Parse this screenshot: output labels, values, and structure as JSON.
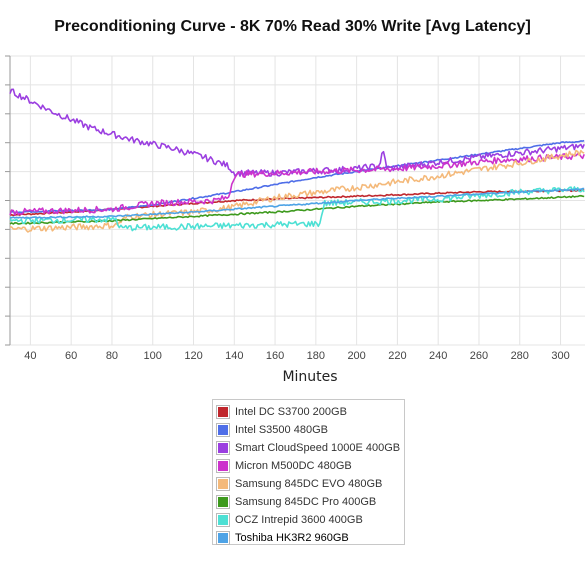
{
  "chart_data": {
    "type": "line",
    "title": "Preconditioning Curve - 8K 70% Read 30% Write [Avg Latency]",
    "xlabel": "Minutes",
    "ylabel": "",
    "xlim": [
      30,
      312
    ],
    "ylim": [
      0,
      10
    ],
    "x_ticks": [
      40,
      60,
      80,
      100,
      120,
      140,
      160,
      180,
      200,
      220,
      240,
      260,
      280,
      300
    ],
    "grid": true,
    "legend_position": "bottom-center",
    "series": [
      {
        "name": "Intel DC S3700 200GB",
        "color": "#c0272d",
        "style": "smooth",
        "points": [
          [
            30,
            4.5
          ],
          [
            60,
            4.6
          ],
          [
            100,
            4.8
          ],
          [
            140,
            5.0
          ],
          [
            180,
            5.1
          ],
          [
            220,
            5.2
          ],
          [
            260,
            5.3
          ],
          [
            312,
            5.35
          ]
        ]
      },
      {
        "name": "Intel S3500 480GB",
        "color": "#4f6ee8",
        "style": "smooth",
        "points": [
          [
            30,
            4.6
          ],
          [
            60,
            4.65
          ],
          [
            82,
            4.7
          ],
          [
            100,
            4.85
          ],
          [
            140,
            5.3
          ],
          [
            180,
            5.8
          ],
          [
            220,
            6.2
          ],
          [
            260,
            6.6
          ],
          [
            300,
            7.0
          ],
          [
            312,
            7.05
          ]
        ]
      },
      {
        "name": "Smart CloudSpeed 1000E 400GB",
        "color": "#9b3fe0",
        "style": "jagged",
        "points": [
          [
            30,
            8.8
          ],
          [
            50,
            8.1
          ],
          [
            70,
            7.5
          ],
          [
            90,
            7.1
          ],
          [
            110,
            6.8
          ],
          [
            125,
            6.5
          ],
          [
            137,
            6.2
          ],
          [
            140,
            5.95
          ],
          [
            160,
            5.95
          ],
          [
            200,
            6.1
          ],
          [
            211,
            6.2
          ],
          [
            213,
            6.7
          ],
          [
            215,
            6.1
          ],
          [
            260,
            6.5
          ],
          [
            300,
            6.8
          ],
          [
            312,
            6.9
          ]
        ]
      },
      {
        "name": "Micron M500DC 480GB",
        "color": "#cc33cc",
        "style": "jagged",
        "points": [
          [
            30,
            4.6
          ],
          [
            80,
            4.7
          ],
          [
            100,
            4.9
          ],
          [
            130,
            5.0
          ],
          [
            137,
            5.1
          ],
          [
            140,
            5.9
          ],
          [
            180,
            6.0
          ],
          [
            220,
            6.1
          ],
          [
            240,
            6.2
          ],
          [
            270,
            6.4
          ],
          [
            300,
            6.5
          ],
          [
            312,
            6.55
          ]
        ]
      },
      {
        "name": "Samsung 845DC EVO 480GB",
        "color": "#f4b97a",
        "style": "jagged",
        "points": [
          [
            30,
            4.0
          ],
          [
            70,
            4.1
          ],
          [
            82,
            4.15
          ],
          [
            88,
            4.45
          ],
          [
            120,
            4.6
          ],
          [
            138,
            4.75
          ],
          [
            160,
            5.1
          ],
          [
            200,
            5.45
          ],
          [
            240,
            5.85
          ],
          [
            280,
            6.3
          ],
          [
            312,
            6.7
          ]
        ]
      },
      {
        "name": "Samsung 845DC Pro 400GB",
        "color": "#3e9a1e",
        "style": "smooth",
        "points": [
          [
            30,
            4.2
          ],
          [
            80,
            4.3
          ],
          [
            120,
            4.45
          ],
          [
            160,
            4.6
          ],
          [
            200,
            4.8
          ],
          [
            240,
            4.95
          ],
          [
            280,
            5.05
          ],
          [
            312,
            5.15
          ]
        ]
      },
      {
        "name": "OCZ Intrepid 3600 400GB",
        "color": "#4de0d4",
        "style": "jagged",
        "points": [
          [
            30,
            4.3
          ],
          [
            82,
            4.35
          ],
          [
            84,
            4.05
          ],
          [
            120,
            4.1
          ],
          [
            182,
            4.2
          ],
          [
            184,
            4.9
          ],
          [
            240,
            5.05
          ],
          [
            280,
            5.3
          ],
          [
            312,
            5.4
          ]
        ]
      },
      {
        "name": "Toshiba HK3R2 960GB",
        "color": "#4ea3e6",
        "style": "smooth",
        "points": [
          [
            30,
            4.4
          ],
          [
            80,
            4.45
          ],
          [
            120,
            4.6
          ],
          [
            160,
            4.8
          ],
          [
            200,
            5.0
          ],
          [
            240,
            5.15
          ],
          [
            280,
            5.3
          ],
          [
            312,
            5.4
          ]
        ]
      }
    ]
  }
}
